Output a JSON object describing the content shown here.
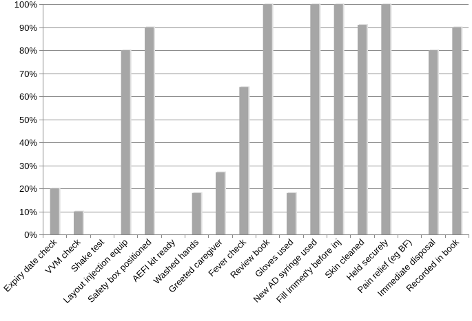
{
  "chart_data": {
    "type": "bar",
    "title": "",
    "xlabel": "",
    "ylabel": "",
    "ylim": [
      0,
      100
    ],
    "y_ticks": [
      "0%",
      "10%",
      "20%",
      "30%",
      "40%",
      "50%",
      "60%",
      "70%",
      "80%",
      "90%",
      "100%"
    ],
    "grid": true,
    "legend": "none",
    "bar_color": "#a6a6a6",
    "bar_shadow_color": "#e0e0e0",
    "categories": [
      "Expiry date check",
      "VVM check",
      "Shake test",
      "Layout injection equip",
      "Safety box positioned",
      "AEFI kit ready",
      "Washed hands",
      "Greeted caregiver",
      "Fever check",
      "Review book",
      "Gloves used",
      "New AD syringe used",
      "Fill immed'y before inj",
      "Skin cleaned",
      "Held securely",
      "Pain relief (eg BF)",
      "Immediate disposal",
      "Recorded in book"
    ],
    "values": [
      20,
      10,
      0,
      80,
      90,
      0,
      18,
      27,
      64,
      100,
      18,
      100,
      100,
      91,
      100,
      0,
      80,
      90
    ]
  }
}
